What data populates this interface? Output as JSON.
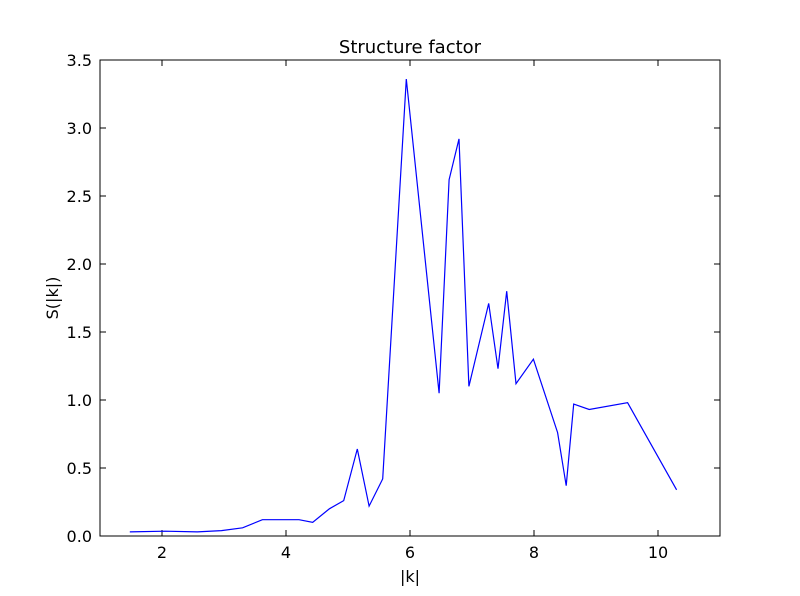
{
  "chart_data": {
    "type": "line",
    "title": "Structure factor",
    "xlabel": "|k|",
    "ylabel": "S(|k|)",
    "xlim": [
      1,
      11
    ],
    "ylim": [
      0.0,
      3.5
    ],
    "xticks": [
      2,
      4,
      6,
      8,
      10
    ],
    "xtick_labels": [
      "2",
      "4",
      "6",
      "8",
      "10"
    ],
    "yticks": [
      0.0,
      0.5,
      1.0,
      1.5,
      2.0,
      2.5,
      3.0,
      3.5
    ],
    "ytick_labels": [
      "0.0",
      "0.5",
      "1.0",
      "1.5",
      "2.0",
      "2.5",
      "3.0",
      "3.5"
    ],
    "grid": false,
    "series": [
      {
        "color": "#0000ff",
        "x": [
          1.48,
          2.05,
          2.57,
          2.96,
          3.3,
          3.62,
          3.92,
          4.21,
          4.43,
          4.7,
          4.93,
          5.15,
          5.34,
          5.56,
          5.94,
          6.47,
          6.63,
          6.79,
          6.95,
          7.27,
          7.42,
          7.56,
          7.71,
          7.99,
          8.38,
          8.52,
          8.64,
          8.89,
          9.51,
          10.3
        ],
        "y": [
          0.03,
          0.035,
          0.03,
          0.04,
          0.06,
          0.12,
          0.12,
          0.12,
          0.1,
          0.2,
          0.26,
          0.64,
          0.22,
          0.42,
          3.36,
          1.05,
          2.62,
          2.92,
          1.1,
          1.71,
          1.23,
          1.8,
          1.12,
          1.3,
          0.76,
          0.37,
          0.97,
          0.93,
          0.98,
          0.34
        ]
      }
    ]
  }
}
